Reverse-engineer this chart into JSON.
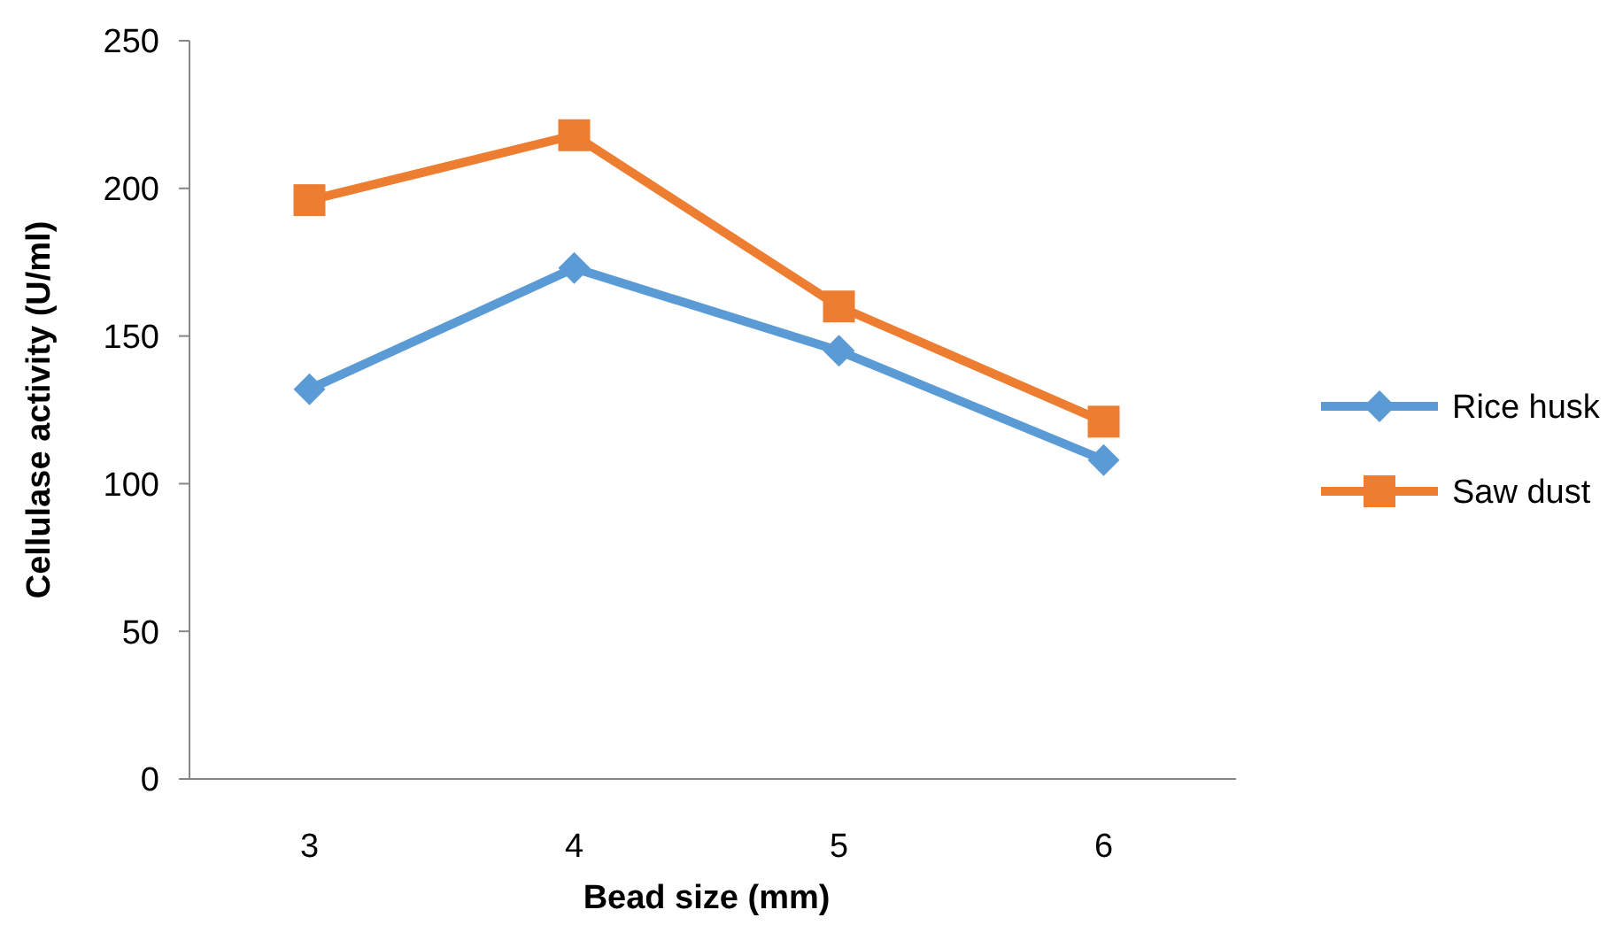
{
  "chart_data": {
    "type": "line",
    "xlabel": "Bead size (mm)",
    "ylabel": "Cellulase activity (U/ml)",
    "categories": [
      "3",
      "4",
      "5",
      "6"
    ],
    "series": [
      {
        "name": "Rice husk",
        "color": "#5b9bd5",
        "marker": "diamond",
        "values": [
          132,
          173,
          145,
          108
        ]
      },
      {
        "name": "Saw dust",
        "color": "#ed7d31",
        "marker": "square",
        "values": [
          196,
          218,
          160,
          121
        ]
      }
    ],
    "ylim": [
      0,
      250
    ],
    "yticks": [
      0,
      50,
      100,
      150,
      200,
      250
    ],
    "grid": false,
    "legend": "right"
  }
}
